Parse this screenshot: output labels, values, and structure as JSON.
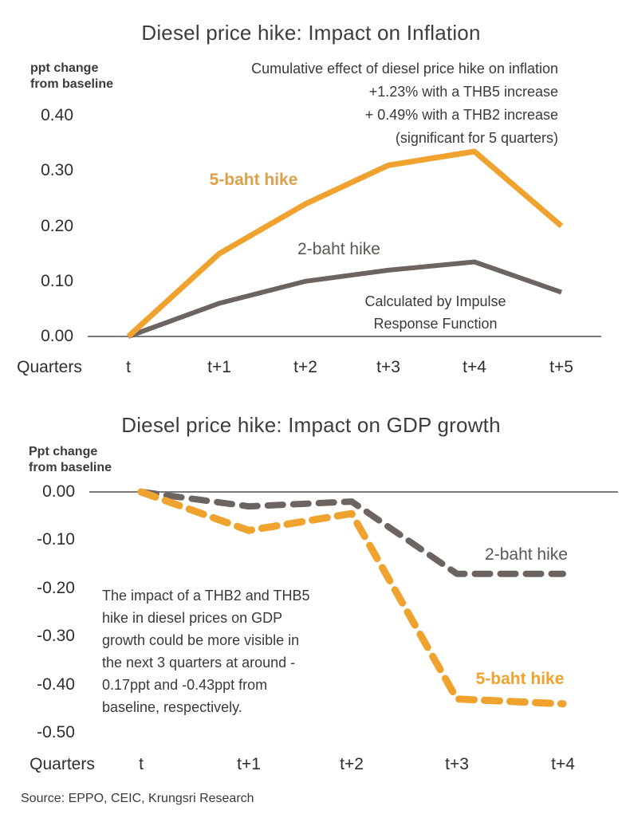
{
  "source_note": "Source: EPPO, CEIC, Krungsri Research",
  "colors": {
    "orange": "#F0A22F",
    "gray": "#6B6460",
    "axis": "#7B7B7B",
    "text": "#3A3A3A"
  },
  "chart_data": [
    {
      "type": "line",
      "title": "Diesel price hike: Impact on Inflation",
      "ylabel": "ppt change\nfrom baseline",
      "xlabel": "Quarters",
      "categories": [
        "t",
        "t+1",
        "t+2",
        "t+3",
        "t+4",
        "t+5"
      ],
      "yticks": [
        "0.40",
        "0.30",
        "0.20",
        "0.10",
        "0.00"
      ],
      "ylim": [
        0.0,
        0.45
      ],
      "grid": false,
      "legend": "inline-labels",
      "series": [
        {
          "name": "5-baht hike",
          "color": "#F0A22F",
          "style": "solid",
          "values": [
            0.0,
            0.15,
            0.24,
            0.31,
            0.335,
            0.2
          ]
        },
        {
          "name": "2-baht hike",
          "color": "#6B6460",
          "style": "solid",
          "values": [
            0.0,
            0.06,
            0.1,
            0.12,
            0.135,
            0.08
          ]
        }
      ],
      "annotation": "Cumulative effect of diesel price hike on inflation\n+1.23% with a THB5 increase\n+ 0.49% with a THB2 increase\n(significant for 5 quarters)",
      "note": "Calculated by Impulse\nResponse Function"
    },
    {
      "type": "line",
      "title": "Diesel price hike: Impact on GDP growth",
      "ylabel": "Ppt change\nfrom baseline",
      "xlabel": "Quarters",
      "categories": [
        "t",
        "t+1",
        "t+2",
        "t+3",
        "t+4"
      ],
      "yticks": [
        "0.00",
        "-0.10",
        "-0.20",
        "-0.30",
        "-0.40",
        "-0.50"
      ],
      "ylim": [
        -0.5,
        0.0
      ],
      "grid": false,
      "legend": "inline-labels",
      "series": [
        {
          "name": "2-baht hike",
          "color": "#6B6460",
          "style": "dashed",
          "values": [
            0.0,
            -0.03,
            -0.02,
            -0.17,
            -0.17
          ]
        },
        {
          "name": "5-baht hike",
          "color": "#F0A22F",
          "style": "dashed",
          "values": [
            0.0,
            -0.08,
            -0.045,
            -0.43,
            -0.44
          ]
        }
      ],
      "annotation": "The impact of a THB2 and THB5\nhike in diesel prices on GDP\ngrowth could be more visible in\nthe next 3 quarters at around -\n0.17ppt and -0.43ppt from\nbaseline, respectively."
    }
  ]
}
